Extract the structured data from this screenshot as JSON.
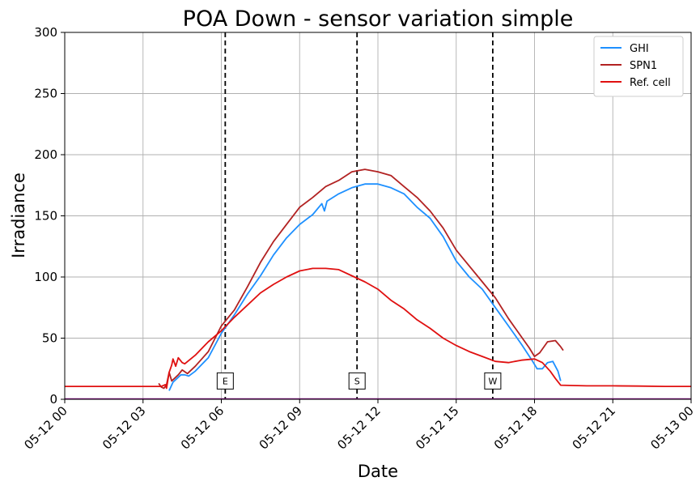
{
  "chart_data": {
    "type": "line",
    "title": "POA Down - sensor variation simple",
    "xlabel": "Date",
    "ylabel": "Irradiance",
    "ylim": [
      0,
      300
    ],
    "xlim_hours": [
      0,
      24
    ],
    "grid": true,
    "legend_position": "top-right",
    "y_ticks": [
      0,
      50,
      100,
      150,
      200,
      250,
      300
    ],
    "x_ticks": [
      {
        "hour": 0,
        "label": "05-12 00"
      },
      {
        "hour": 3,
        "label": "05-12 03"
      },
      {
        "hour": 6,
        "label": "05-12 06"
      },
      {
        "hour": 9,
        "label": "05-12 09"
      },
      {
        "hour": 12,
        "label": "05-12 12"
      },
      {
        "hour": 15,
        "label": "05-12 15"
      },
      {
        "hour": 18,
        "label": "05-12 18"
      },
      {
        "hour": 21,
        "label": "05-12 21"
      },
      {
        "hour": 24,
        "label": "05-13 00"
      }
    ],
    "vertical_markers": [
      {
        "hour": 6.15,
        "label": "E"
      },
      {
        "hour": 11.2,
        "label": "S"
      },
      {
        "hour": 16.4,
        "label": "W"
      }
    ],
    "series": [
      {
        "name": "GHI",
        "color": "#1e90ff",
        "points": [
          [
            4.0,
            7
          ],
          [
            4.15,
            14
          ],
          [
            4.3,
            17
          ],
          [
            4.45,
            20
          ],
          [
            4.6,
            20
          ],
          [
            4.75,
            19
          ],
          [
            5.0,
            23
          ],
          [
            5.5,
            34
          ],
          [
            6.0,
            54
          ],
          [
            6.5,
            69
          ],
          [
            7.0,
            86
          ],
          [
            7.5,
            101
          ],
          [
            8.0,
            118
          ],
          [
            8.5,
            132
          ],
          [
            9.0,
            143
          ],
          [
            9.5,
            151
          ],
          [
            9.85,
            160
          ],
          [
            9.95,
            154
          ],
          [
            10.05,
            162
          ],
          [
            10.5,
            168
          ],
          [
            11.0,
            173
          ],
          [
            11.5,
            176
          ],
          [
            12.0,
            176
          ],
          [
            12.5,
            173
          ],
          [
            13.0,
            168
          ],
          [
            13.5,
            157
          ],
          [
            14.0,
            148
          ],
          [
            14.5,
            133
          ],
          [
            15.0,
            113
          ],
          [
            15.5,
            100
          ],
          [
            16.0,
            90
          ],
          [
            16.5,
            75
          ],
          [
            17.0,
            60
          ],
          [
            17.5,
            45
          ],
          [
            17.9,
            32
          ],
          [
            18.1,
            25
          ],
          [
            18.3,
            25
          ],
          [
            18.5,
            30
          ],
          [
            18.7,
            31
          ],
          [
            18.9,
            23
          ],
          [
            19.0,
            15
          ]
        ]
      },
      {
        "name": "SPN1",
        "color": "#b22222",
        "points": [
          [
            3.6,
            13
          ],
          [
            3.7,
            10
          ],
          [
            3.8,
            9
          ],
          [
            3.9,
            12
          ],
          [
            4.0,
            22
          ],
          [
            4.1,
            15
          ],
          [
            4.2,
            17
          ],
          [
            4.35,
            20
          ],
          [
            4.5,
            24
          ],
          [
            4.7,
            21
          ],
          [
            5.0,
            27
          ],
          [
            5.5,
            39
          ],
          [
            6.0,
            60
          ],
          [
            6.5,
            73
          ],
          [
            7.0,
            92
          ],
          [
            7.5,
            112
          ],
          [
            8.0,
            129
          ],
          [
            8.5,
            143
          ],
          [
            9.0,
            157
          ],
          [
            9.5,
            165
          ],
          [
            10.0,
            174
          ],
          [
            10.5,
            179
          ],
          [
            11.0,
            186
          ],
          [
            11.5,
            188
          ],
          [
            12.0,
            186
          ],
          [
            12.5,
            183
          ],
          [
            13.0,
            174
          ],
          [
            13.5,
            165
          ],
          [
            14.0,
            154
          ],
          [
            14.5,
            140
          ],
          [
            15.0,
            122
          ],
          [
            15.5,
            109
          ],
          [
            16.0,
            96
          ],
          [
            16.5,
            83
          ],
          [
            17.0,
            66
          ],
          [
            17.5,
            51
          ],
          [
            17.8,
            42
          ],
          [
            18.0,
            35
          ],
          [
            18.2,
            38
          ],
          [
            18.5,
            47
          ],
          [
            18.8,
            48
          ],
          [
            19.0,
            43
          ],
          [
            19.1,
            40
          ]
        ]
      },
      {
        "name": "Ref. cell",
        "color": "#e01010",
        "points": [
          [
            0,
            10.5
          ],
          [
            1,
            10.5
          ],
          [
            2,
            10.5
          ],
          [
            3,
            10.5
          ],
          [
            3.7,
            10.5
          ],
          [
            3.85,
            12
          ],
          [
            3.9,
            9
          ],
          [
            4.0,
            22
          ],
          [
            4.1,
            28
          ],
          [
            4.15,
            33
          ],
          [
            4.25,
            27
          ],
          [
            4.35,
            34
          ],
          [
            4.5,
            30
          ],
          [
            4.6,
            29
          ],
          [
            5.0,
            36
          ],
          [
            5.5,
            47
          ],
          [
            6.0,
            56
          ],
          [
            6.5,
            67
          ],
          [
            7.0,
            77
          ],
          [
            7.5,
            87
          ],
          [
            8.0,
            94
          ],
          [
            8.5,
            100
          ],
          [
            9.0,
            105
          ],
          [
            9.5,
            107
          ],
          [
            10.0,
            107
          ],
          [
            10.5,
            106
          ],
          [
            11.0,
            101
          ],
          [
            11.5,
            96
          ],
          [
            12.0,
            90
          ],
          [
            12.5,
            81
          ],
          [
            13.0,
            74
          ],
          [
            13.5,
            65
          ],
          [
            14.0,
            58
          ],
          [
            14.5,
            50
          ],
          [
            15.0,
            44
          ],
          [
            15.5,
            39
          ],
          [
            16.0,
            35
          ],
          [
            16.5,
            31
          ],
          [
            17.0,
            30
          ],
          [
            17.5,
            32
          ],
          [
            18.0,
            33
          ],
          [
            18.3,
            30
          ],
          [
            18.6,
            23
          ],
          [
            18.8,
            17
          ],
          [
            19.0,
            11.5
          ],
          [
            20.0,
            11
          ],
          [
            21.0,
            11
          ],
          [
            22.0,
            10.8
          ],
          [
            23.0,
            10.5
          ],
          [
            24.0,
            10.5
          ]
        ]
      }
    ],
    "zero_baseline_color": "#800080"
  }
}
